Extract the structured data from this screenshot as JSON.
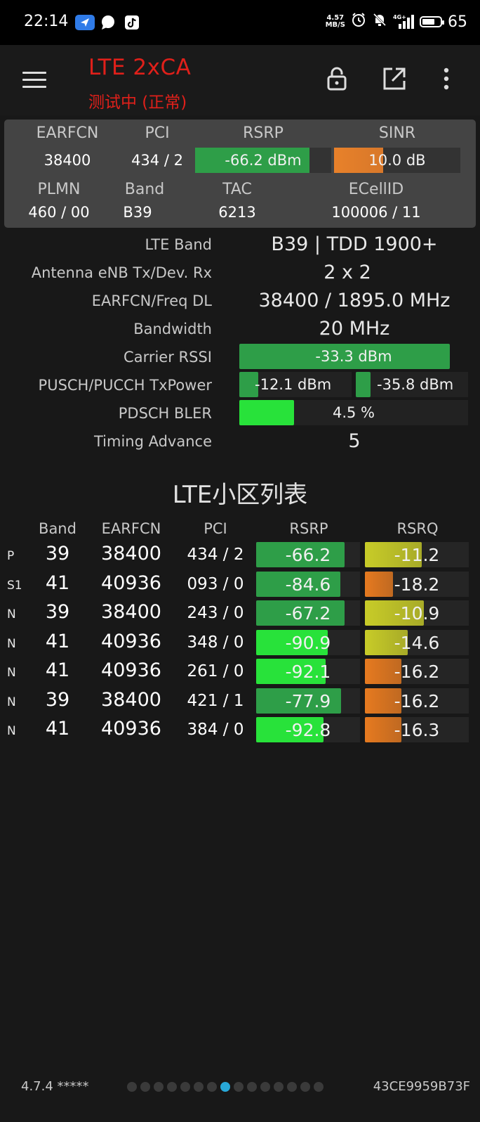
{
  "status_bar": {
    "time": "22:14",
    "net_speed_value": "4.57",
    "net_speed_unit": "MB/S",
    "signal_label": "4G+",
    "battery": "65",
    "icons": [
      "location-arrow-icon",
      "chat-bubble-icon",
      "tiktok-icon",
      "alarm-icon",
      "mute-bell-icon",
      "signal-icon",
      "battery-icon"
    ]
  },
  "app_bar": {
    "title": "LTE 2xCA",
    "subtitle": "测试中 (正常)",
    "title_color": "#e0201a",
    "icons": [
      "menu-icon",
      "lock-open-icon",
      "open-external-icon",
      "more-vert-icon"
    ]
  },
  "summary": {
    "headers": {
      "earfcn": "EARFCN",
      "pci": "PCI",
      "rsrp": "RSRP",
      "sinr": "SINR",
      "plmn": "PLMN",
      "band": "Band",
      "tac": "TAC",
      "ecellid": "ECellID"
    },
    "values": {
      "earfcn": "38400",
      "pci": "434 / 2",
      "rsrp": "-66.2 dBm",
      "sinr": "10.0 dB",
      "plmn": "460 / 00",
      "band": "B39",
      "tac": "6213",
      "ecellid": "100006 / 11"
    },
    "rsrp_fill": 0.84,
    "sinr_fill": 0.39
  },
  "params": {
    "lte_band_label": "LTE Band",
    "lte_band_value": "B39 | TDD 1900+",
    "antenna_label": "Antenna eNB Tx/Dev. Rx",
    "antenna_value": "2 x 2",
    "earfcn_freq_label": "EARFCN/Freq DL",
    "earfcn_freq_value": "38400 / 1895.0 MHz",
    "bandwidth_label": "Bandwidth",
    "bandwidth_value": "20 MHz",
    "carrier_rssi_label": "Carrier RSSI",
    "carrier_rssi_value": "-33.3 dBm",
    "carrier_rssi_fill": 0.92,
    "txpower_label": "PUSCH/PUCCH TxPower",
    "pusch_value": "-12.1 dBm",
    "pusch_fill": 0.17,
    "pucch_value": "-35.8 dBm",
    "pucch_fill": 0.13,
    "bler_label": "PDSCH BLER",
    "bler_value": "4.5 %",
    "bler_fill": 0.24,
    "ta_label": "Timing Advance",
    "ta_value": "5"
  },
  "cell_list": {
    "title": "LTE小区列表",
    "headers": {
      "band": "Band",
      "earfcn": "EARFCN",
      "pci": "PCI",
      "rsrp": "RSRP",
      "rsrq": "RSRQ"
    },
    "rows": [
      {
        "type": "P",
        "band": "39",
        "earfcn": "38400",
        "pci": "434 / 2",
        "rsrp": "-66.2",
        "rsrq": "-11.2",
        "rsrp_fill": 0.85,
        "rsrq_fill": 0.55
      },
      {
        "type": "S1",
        "band": "41",
        "earfcn": "40936",
        "pci": "093 / 0",
        "rsrp": "-84.6",
        "rsrq": "-18.2",
        "rsrp_fill": 0.81,
        "rsrq_fill": 0.27
      },
      {
        "type": "N",
        "band": "39",
        "earfcn": "38400",
        "pci": "243 / 0",
        "rsrp": "-67.2",
        "rsrq": "-10.9",
        "rsrp_fill": 0.85,
        "rsrq_fill": 0.57
      },
      {
        "type": "N",
        "band": "41",
        "earfcn": "40936",
        "pci": "348 / 0",
        "rsrp": "-90.9",
        "rsrq": "-14.6",
        "rsrp_fill": 0.69,
        "rsrq_fill": 0.41
      },
      {
        "type": "N",
        "band": "41",
        "earfcn": "40936",
        "pci": "261 / 0",
        "rsrp": "-92.1",
        "rsrq": "-16.2",
        "rsrp_fill": 0.67,
        "rsrq_fill": 0.35
      },
      {
        "type": "N",
        "band": "39",
        "earfcn": "38400",
        "pci": "421 / 1",
        "rsrp": "-77.9",
        "rsrq": "-16.2",
        "rsrp_fill": 0.82,
        "rsrq_fill": 0.35
      },
      {
        "type": "N",
        "band": "41",
        "earfcn": "40936",
        "pci": "384 / 0",
        "rsrp": "-92.8",
        "rsrq": "-16.3",
        "rsrp_fill": 0.65,
        "rsrq_fill": 0.35
      }
    ]
  },
  "footer": {
    "version": "4.7.4 *****",
    "device_id": "43CE9959B73F",
    "page_count": 15,
    "active_page": 8
  },
  "colors": {
    "rsrp_good": "#2e9e48",
    "rsrp_fair": "#28e23a",
    "rsrq_good": "#c8cc28",
    "rsrq_bad": "#e67a20",
    "sinr": "#e8812a",
    "panel_bg": "#444444"
  }
}
